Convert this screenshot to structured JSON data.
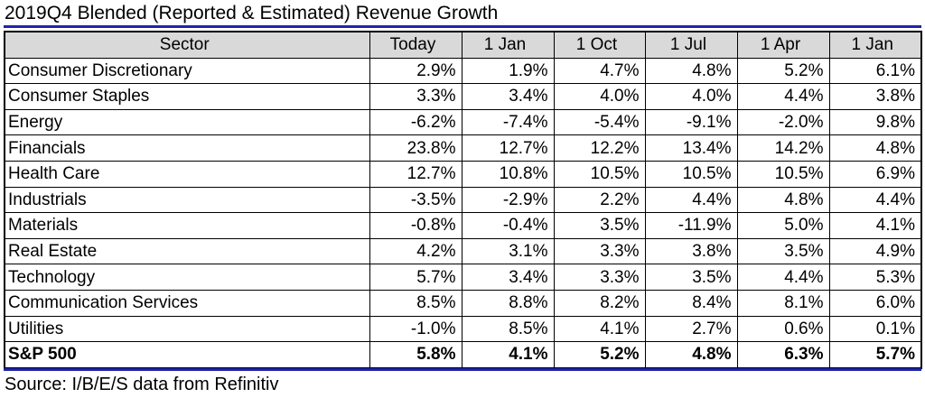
{
  "title": "2019Q4 Blended (Reported & Estimated) Revenue Growth",
  "source": "Source: I/B/E/S data from Refinitiv",
  "chart_data": {
    "type": "table",
    "columns": [
      "Sector",
      "Today",
      "1 Jan",
      "1 Oct",
      "1 Jul",
      "1 Apr",
      "1 Jan"
    ],
    "rows": [
      {
        "sector": "Consumer Discretionary",
        "values": [
          "2.9%",
          "1.9%",
          "4.7%",
          "4.8%",
          "5.2%",
          "6.1%"
        ]
      },
      {
        "sector": "Consumer Staples",
        "values": [
          "3.3%",
          "3.4%",
          "4.0%",
          "4.0%",
          "4.4%",
          "3.8%"
        ]
      },
      {
        "sector": "Energy",
        "values": [
          "-6.2%",
          "-7.4%",
          "-5.4%",
          "-9.1%",
          "-2.0%",
          "9.8%"
        ]
      },
      {
        "sector": "Financials",
        "values": [
          "23.8%",
          "12.7%",
          "12.2%",
          "13.4%",
          "14.2%",
          "4.8%"
        ]
      },
      {
        "sector": "Health Care",
        "values": [
          "12.7%",
          "10.8%",
          "10.5%",
          "10.5%",
          "10.5%",
          "6.9%"
        ]
      },
      {
        "sector": "Industrials",
        "values": [
          "-3.5%",
          "-2.9%",
          "2.2%",
          "4.4%",
          "4.8%",
          "4.4%"
        ]
      },
      {
        "sector": "Materials",
        "values": [
          "-0.8%",
          "-0.4%",
          "3.5%",
          "-11.9%",
          "5.0%",
          "4.1%"
        ]
      },
      {
        "sector": "Real Estate",
        "values": [
          "4.2%",
          "3.1%",
          "3.3%",
          "3.8%",
          "3.5%",
          "4.9%"
        ]
      },
      {
        "sector": "Technology",
        "values": [
          "5.7%",
          "3.4%",
          "3.3%",
          "3.5%",
          "4.4%",
          "5.3%"
        ]
      },
      {
        "sector": "Communication Services",
        "values": [
          "8.5%",
          "8.8%",
          "8.2%",
          "8.4%",
          "8.1%",
          "6.0%"
        ]
      },
      {
        "sector": "Utilities",
        "values": [
          "-1.0%",
          "8.5%",
          "4.1%",
          "2.7%",
          "0.6%",
          "0.1%"
        ]
      },
      {
        "sector": "S&P 500",
        "values": [
          "5.8%",
          "4.1%",
          "5.2%",
          "4.8%",
          "6.3%",
          "5.7%"
        ],
        "bold": true
      }
    ]
  }
}
